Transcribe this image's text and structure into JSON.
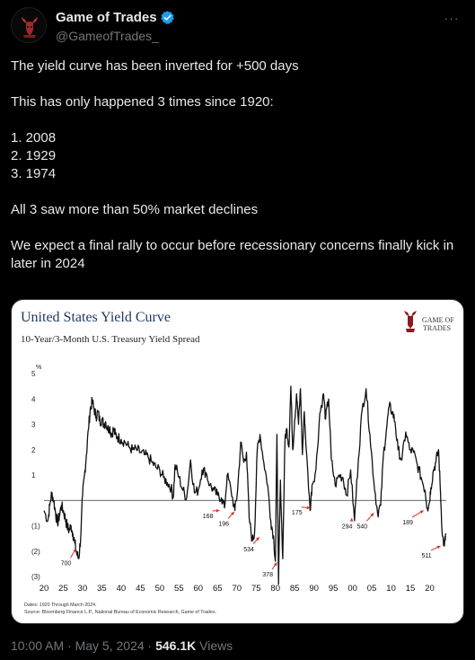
{
  "header": {
    "display_name": "Game of Trades",
    "handle": "@GameofTrades_",
    "avatar_icon": "bull-logo-icon",
    "verified_icon": "verified-badge-icon",
    "verified_color": "#1d9bf0",
    "more_icon": "more-dots-icon"
  },
  "tweet": {
    "lines": [
      "The yield curve has been inverted for +500 days",
      "",
      "This has only happened 3 times since 1920:",
      "",
      "1. 2008",
      "2. 1929",
      "3. 1974",
      "",
      "All 3 saw more than 50% market declines",
      "",
      "We expect a final rally to occur before recessionary concerns finally kick in later in 2024"
    ]
  },
  "chart": {
    "title": "United States Yield Curve",
    "subtitle": "10-Year/3-Month U.S. Treasury Yield Spread",
    "logo_line1": "GAME OF",
    "logo_line2": "TRADES",
    "unit_label": "%",
    "footnote1": "Dates: 1920 Through March 2024.",
    "footnote2": "Source: Bloomberg Finance L.P., National Bureau of Economic Research, Game of Trades.",
    "title_color": "#1f3864",
    "annotation_color": "#d0312d"
  },
  "chart_data": {
    "type": "line",
    "title": "United States Yield Curve",
    "subtitle": "10-Year/3-Month U.S. Treasury Yield Spread",
    "ylabel": "%",
    "xlabel": "",
    "ylim": [
      -3,
      5
    ],
    "xlim": [
      1920,
      2024.3
    ],
    "y_ticks": [
      5,
      4,
      3,
      2,
      1,
      -1,
      -2,
      -3
    ],
    "y_tick_labels": [
      "5",
      "4",
      "3",
      "2",
      "1",
      "(1)",
      "(2)",
      "(3)"
    ],
    "x_ticks": [
      1920,
      1925,
      1930,
      1935,
      1940,
      1945,
      1950,
      1955,
      1960,
      1965,
      1970,
      1975,
      1980,
      1985,
      1990,
      1995,
      2000,
      2005,
      2010,
      2015,
      2020
    ],
    "x_tick_labels": [
      "20",
      "25",
      "30",
      "35",
      "40",
      "45",
      "50",
      "55",
      "60",
      "65",
      "70",
      "75",
      "80",
      "85",
      "90",
      "95",
      "00",
      "05",
      "10",
      "15",
      "20"
    ],
    "zero_line": 0,
    "series": [
      {
        "values": [
          [
            1920.0,
            -0.4
          ],
          [
            1921.0,
            -0.8
          ],
          [
            1921.5,
            -0.2
          ],
          [
            1922.0,
            0.3
          ],
          [
            1922.5,
            0.0
          ],
          [
            1923.0,
            -0.5
          ],
          [
            1923.5,
            -0.9
          ],
          [
            1924.0,
            -0.6
          ],
          [
            1924.5,
            -0.2
          ],
          [
            1925.0,
            -0.4
          ],
          [
            1925.5,
            -0.7
          ],
          [
            1926.0,
            -1.0
          ],
          [
            1926.5,
            -1.2
          ],
          [
            1927.0,
            -1.0
          ],
          [
            1927.5,
            -1.3
          ],
          [
            1928.0,
            -1.7
          ],
          [
            1928.5,
            -2.1
          ],
          [
            1929.0,
            -2.3
          ],
          [
            1929.5,
            -1.5
          ],
          [
            1930.0,
            0.2
          ],
          [
            1930.5,
            1.0
          ],
          [
            1931.0,
            1.8
          ],
          [
            1931.5,
            2.8
          ],
          [
            1932.0,
            3.6
          ],
          [
            1932.5,
            3.9
          ],
          [
            1933.0,
            3.6
          ],
          [
            1933.5,
            3.3
          ],
          [
            1934.0,
            3.5
          ],
          [
            1934.5,
            3.1
          ],
          [
            1935.0,
            3.2
          ],
          [
            1935.5,
            3.0
          ],
          [
            1936.0,
            3.1
          ],
          [
            1936.5,
            2.8
          ],
          [
            1937.0,
            2.9
          ],
          [
            1937.5,
            2.6
          ],
          [
            1938.0,
            2.8
          ],
          [
            1938.5,
            2.6
          ],
          [
            1939.0,
            2.5
          ],
          [
            1940.0,
            2.4
          ],
          [
            1941.0,
            2.3
          ],
          [
            1942.0,
            2.1
          ],
          [
            1943.0,
            2.0
          ],
          [
            1944.0,
            2.0
          ],
          [
            1945.0,
            1.9
          ],
          [
            1946.0,
            1.8
          ],
          [
            1947.0,
            1.7
          ],
          [
            1948.0,
            1.5
          ],
          [
            1949.0,
            1.3
          ],
          [
            1950.0,
            1.2
          ],
          [
            1951.0,
            0.9
          ],
          [
            1952.0,
            0.7
          ],
          [
            1953.0,
            0.5
          ],
          [
            1953.5,
            0.1
          ],
          [
            1954.0,
            1.4
          ],
          [
            1955.0,
            0.9
          ],
          [
            1956.0,
            0.4
          ],
          [
            1957.0,
            0.1
          ],
          [
            1958.0,
            1.6
          ],
          [
            1959.0,
            0.3
          ],
          [
            1960.0,
            0.4
          ],
          [
            1961.0,
            1.2
          ],
          [
            1962.0,
            1.1
          ],
          [
            1963.0,
            0.6
          ],
          [
            1964.0,
            0.4
          ],
          [
            1965.0,
            0.2
          ],
          [
            1966.0,
            0.1
          ],
          [
            1966.8,
            -0.3
          ],
          [
            1967.5,
            1.0
          ],
          [
            1968.5,
            0.4
          ],
          [
            1969.5,
            -0.4
          ],
          [
            1970.2,
            0.4
          ],
          [
            1971.0,
            2.3
          ],
          [
            1971.8,
            1.5
          ],
          [
            1972.5,
            1.9
          ],
          [
            1973.2,
            -0.7
          ],
          [
            1974.0,
            -1.6
          ],
          [
            1974.6,
            -1.3
          ],
          [
            1975.3,
            2.0
          ],
          [
            1976.0,
            2.6
          ],
          [
            1977.0,
            1.5
          ],
          [
            1978.0,
            0.6
          ],
          [
            1978.8,
            -0.8
          ],
          [
            1979.5,
            -1.4
          ],
          [
            1980.0,
            -2.4
          ],
          [
            1980.4,
            2.6
          ],
          [
            1980.8,
            -3.3
          ],
          [
            1981.3,
            0.8
          ],
          [
            1981.9,
            -2.3
          ],
          [
            1982.5,
            2.5
          ],
          [
            1983.0,
            2.8
          ],
          [
            1983.5,
            2.1
          ],
          [
            1984.0,
            4.5
          ],
          [
            1984.5,
            2.0
          ],
          [
            1985.0,
            3.2
          ],
          [
            1985.5,
            4.2
          ],
          [
            1986.0,
            3.0
          ],
          [
            1986.5,
            4.4
          ],
          [
            1987.0,
            1.8
          ],
          [
            1987.5,
            3.5
          ],
          [
            1988.0,
            2.0
          ],
          [
            1989.0,
            -0.4
          ],
          [
            1989.5,
            0.6
          ],
          [
            1990.5,
            1.2
          ],
          [
            1991.5,
            3.4
          ],
          [
            1992.5,
            4.2
          ],
          [
            1993.0,
            3.2
          ],
          [
            1993.8,
            4.0
          ],
          [
            1994.5,
            1.6
          ],
          [
            1995.5,
            0.6
          ],
          [
            1996.5,
            1.0
          ],
          [
            1997.5,
            0.9
          ],
          [
            1998.5,
            0.2
          ],
          [
            1999.5,
            1.2
          ],
          [
            2000.5,
            -0.8
          ],
          [
            2001.5,
            1.6
          ],
          [
            2002.5,
            3.6
          ],
          [
            2003.5,
            4.4
          ],
          [
            2004.5,
            2.6
          ],
          [
            2005.5,
            0.8
          ],
          [
            2006.5,
            -0.5
          ],
          [
            2007.3,
            -0.2
          ],
          [
            2008.0,
            1.8
          ],
          [
            2008.8,
            2.8
          ],
          [
            2009.5,
            3.7
          ],
          [
            2010.3,
            3.5
          ],
          [
            2011.0,
            3.1
          ],
          [
            2011.8,
            2.0
          ],
          [
            2012.8,
            1.6
          ],
          [
            2013.8,
            2.7
          ],
          [
            2014.8,
            2.0
          ],
          [
            2015.8,
            1.9
          ],
          [
            2016.8,
            1.4
          ],
          [
            2017.8,
            0.9
          ],
          [
            2018.8,
            0.4
          ],
          [
            2019.4,
            -0.3
          ],
          [
            2019.9,
            -0.1
          ],
          [
            2020.3,
            0.5
          ],
          [
            2021.0,
            1.2
          ],
          [
            2021.6,
            1.5
          ],
          [
            2022.3,
            2.0
          ],
          [
            2022.8,
            0.3
          ],
          [
            2023.3,
            -1.4
          ],
          [
            2023.8,
            -1.8
          ],
          [
            2024.2,
            -1.3
          ]
        ]
      }
    ],
    "annotations": [
      {
        "text": "700",
        "x": 1925.7,
        "y": -2.55,
        "arrow_to": [
          1928.3,
          -1.9
        ],
        "side": "below"
      },
      {
        "text": "168",
        "x": 1962.5,
        "y": -0.7,
        "arrow_to": [
          1965.5,
          -0.4
        ],
        "side": "left"
      },
      {
        "text": "196",
        "x": 1966.6,
        "y": -1.0,
        "arrow_to": [
          1969.3,
          -0.45
        ],
        "side": "below"
      },
      {
        "text": "534",
        "x": 1973.1,
        "y": -2.0,
        "arrow_to": [
          1975.8,
          -1.45
        ],
        "side": "below"
      },
      {
        "text": "378",
        "x": 1978.0,
        "y": -3.0,
        "arrow_to": [
          1980.4,
          -2.45
        ],
        "side": "below"
      },
      {
        "text": "175",
        "x": 1985.6,
        "y": -0.55,
        "arrow_to": [
          1989.0,
          -0.3
        ],
        "side": "left"
      },
      {
        "text": "294",
        "x": 1998.6,
        "y": -1.1,
        "arrow_to": [
          1999.8,
          -0.7
        ],
        "side": "below"
      },
      {
        "text": "540",
        "x": 2002.5,
        "y": -1.1,
        "arrow_to": [
          2005.5,
          -0.5
        ],
        "side": "below"
      },
      {
        "text": "189",
        "x": 2014.3,
        "y": -0.95,
        "arrow_to": [
          2018.4,
          -0.4
        ],
        "side": "left"
      },
      {
        "text": "511",
        "x": 2019.2,
        "y": -2.25,
        "arrow_to": [
          2022.8,
          -1.8
        ],
        "side": "below"
      }
    ]
  },
  "meta": {
    "timestamp": "10:00 AM · May 5, 2024 ·",
    "views_count": "546.1K",
    "views_label": " Views"
  }
}
